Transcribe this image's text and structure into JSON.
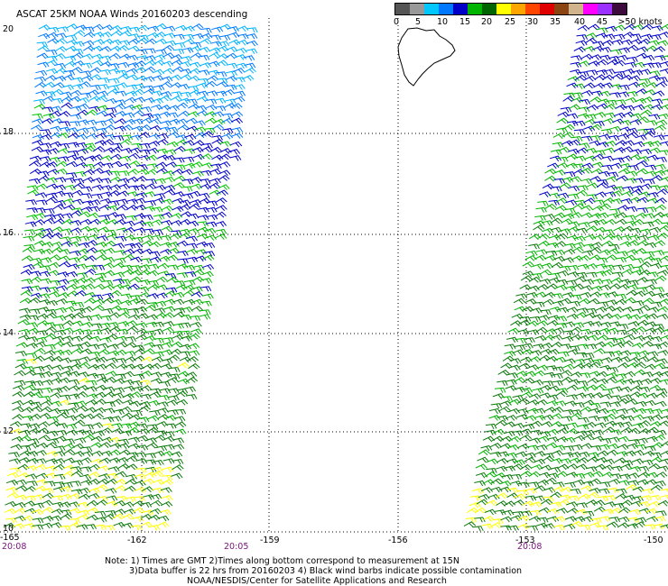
{
  "title": "ASCAT 25KM NOAA Winds 20160203 descending",
  "speed_scale": {
    "colors": [
      "#555555",
      "#999999",
      "#00c8ff",
      "#0078ff",
      "#0000c8",
      "#00b400",
      "#006400",
      "#ffff00",
      "#ffa500",
      "#ff4500",
      "#e00000",
      "#8b4513",
      "#d2b48c",
      "#ff00ff",
      "#9b30ff",
      "#3c0a3c"
    ],
    "labels": [
      "0",
      "5",
      "10",
      "15",
      "20",
      "25",
      "30",
      "35",
      "40",
      "45",
      ">50 knots"
    ]
  },
  "axes": {
    "lat_labels": [
      "20",
      "18",
      "16",
      "14",
      "12",
      "10"
    ],
    "lon_labels": [
      "-165",
      "-162",
      "-159",
      "-156",
      "-153",
      "-150"
    ]
  },
  "pass_times": [
    "20:08",
    "20:05",
    "20:08"
  ],
  "notes": [
    "Note: 1) Times are GMT 2)Times along bottom correspond to measurement at 15N",
    "3)Data buffer is 22 hrs from 20160203 4) Black wind barbs indicate possible contamination",
    "NOAA/NESDIS/Center for Satellite Applications and Research"
  ]
}
